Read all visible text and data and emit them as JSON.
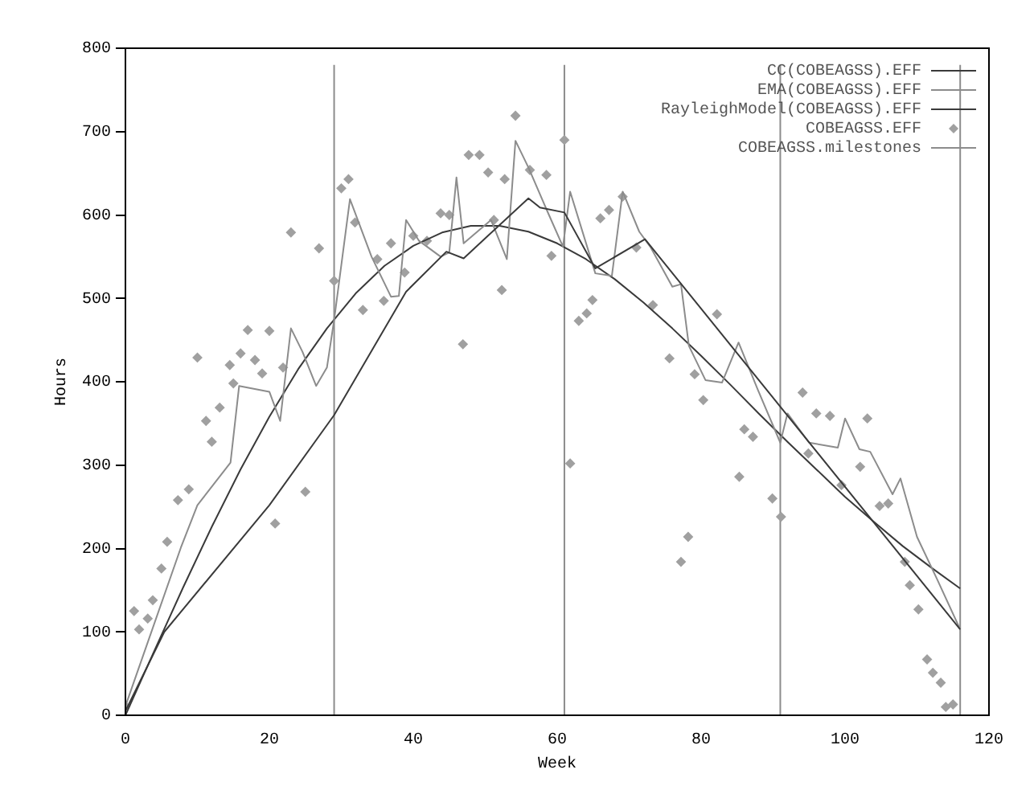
{
  "chart_data": {
    "type": "line",
    "xlabel": "Week",
    "ylabel": "Hours",
    "xlim": [
      0,
      120
    ],
    "xticks": [
      0,
      20,
      40,
      60,
      80,
      100,
      120
    ],
    "ylim": [
      0,
      800
    ],
    "yticks": [
      0,
      100,
      200,
      300,
      400,
      500,
      600,
      700,
      800
    ],
    "grid": false,
    "legend": "top right",
    "series": [
      {
        "name": "CC(COBEAGSS).EFF",
        "color": "#3a3a3a",
        "x": [
          0,
          5.4,
          20,
          29,
          39,
          44.6,
          47,
          50,
          56,
          57.6,
          61,
          65.3,
          72.2,
          116
        ],
        "values": [
          5,
          100,
          252,
          360,
          508,
          556,
          548,
          572,
          620,
          609,
          603,
          536,
          571,
          103
        ]
      },
      {
        "name": "EMA(COBEAGSS).EFF",
        "color": "#8c8c8c",
        "x": [
          0,
          7.7,
          10,
          14.6,
          15.8,
          20,
          21.5,
          23,
          24.6,
          26.5,
          28,
          29,
          31.2,
          34.2,
          36.9,
          38,
          39,
          40.8,
          43.8,
          45,
          46,
          47,
          50.8,
          53,
          54.2,
          56,
          58.5,
          60.8,
          61.8,
          65.3,
          67.6,
          69.1,
          71.4,
          73,
          76,
          77.2,
          78.3,
          80.6,
          82.9,
          85.2,
          87.9,
          91,
          92,
          95,
          99,
          100,
          102,
          103.5,
          106.6,
          107.7,
          110,
          112.8,
          116
        ],
        "values": [
          11,
          201,
          252,
          303,
          395,
          388,
          353,
          464,
          436,
          395,
          417,
          474,
          619,
          550,
          502,
          503,
          594,
          569,
          550,
          555,
          645,
          566,
          594,
          547,
          689,
          657,
          607,
          562,
          628,
          530,
          527,
          628,
          580,
          561,
          514,
          517,
          443,
          402,
          399,
          447,
          390,
          327,
          362,
          327,
          321,
          356,
          319,
          316,
          265,
          284,
          214,
          163,
          103
        ]
      },
      {
        "name": "RayleighModel(COBEAGSS).EFF",
        "color": "#3a3a3a",
        "x": [
          0,
          4,
          8,
          12,
          16,
          20,
          24,
          28,
          32,
          36,
          40,
          44,
          48,
          52,
          56,
          60,
          64,
          68,
          72,
          76,
          80,
          84,
          88,
          92,
          96,
          100,
          104,
          108,
          112,
          116
        ],
        "values": [
          0,
          77,
          153,
          226,
          295,
          358,
          415,
          464,
          506,
          539,
          563,
          579,
          587,
          587,
          580,
          566,
          547,
          523,
          495,
          464,
          431,
          397,
          362,
          328,
          295,
          262,
          232,
          203,
          177,
          152
        ]
      },
      {
        "name": "COBEAGSS.EFF",
        "type": "scatter",
        "marker": "diamond",
        "color": "#a0a0a0",
        "x": [
          0,
          1.2,
          1.9,
          3.1,
          3.8,
          5,
          5.8,
          7.3,
          8.8,
          10,
          11.2,
          12,
          13.1,
          14.5,
          15,
          16,
          17,
          18,
          19,
          20,
          20.8,
          21.9,
          23,
          25,
          26.9,
          29,
          30,
          31,
          31.9,
          33,
          35,
          35.9,
          36.9,
          38.8,
          40,
          41.9,
          43.8,
          45,
          46.9,
          47.7,
          49.2,
          50.4,
          51.2,
          52.3,
          52.7,
          54.2,
          56.2,
          58.5,
          59.2,
          61,
          61.8,
          63,
          64.1,
          64.9,
          66,
          67.2,
          69.1,
          71,
          73.3,
          75.6,
          77.2,
          78.2,
          79.1,
          80.3,
          82.2,
          85.3,
          86,
          87.2,
          89.9,
          91.1,
          94.1,
          94.9,
          96,
          97.9,
          99.5,
          102.1,
          103.1,
          104.8,
          106,
          108.3,
          109,
          110.2,
          111.4,
          112.2,
          113.3,
          114,
          115
        ],
        "values": [
          11,
          125,
          103,
          116,
          138,
          176,
          208,
          258,
          271,
          429,
          353,
          328,
          369,
          420,
          398,
          434,
          462,
          426,
          410,
          461,
          230,
          417,
          579,
          268,
          560,
          521,
          632,
          643,
          591,
          486,
          547,
          497,
          566,
          531,
          575,
          569,
          602,
          600,
          445,
          672,
          672,
          651,
          594,
          510,
          643,
          719,
          654,
          648,
          551,
          690,
          302,
          473,
          482,
          498,
          596,
          606,
          622,
          561,
          492,
          428,
          184,
          214,
          409,
          378,
          481,
          286,
          343,
          334,
          260,
          238,
          387,
          314,
          362,
          359,
          276,
          298,
          356,
          251,
          254,
          184,
          156,
          127,
          67,
          51,
          39,
          10,
          13
        ]
      },
      {
        "name": "COBEAGSS.milestones",
        "color": "#8c8c8c",
        "x": [
          29,
          29,
          null,
          61,
          61,
          null,
          91,
          91,
          null,
          116,
          116
        ],
        "values": [
          0,
          780,
          null,
          0,
          780,
          null,
          0,
          780,
          null,
          0,
          780
        ]
      }
    ]
  }
}
